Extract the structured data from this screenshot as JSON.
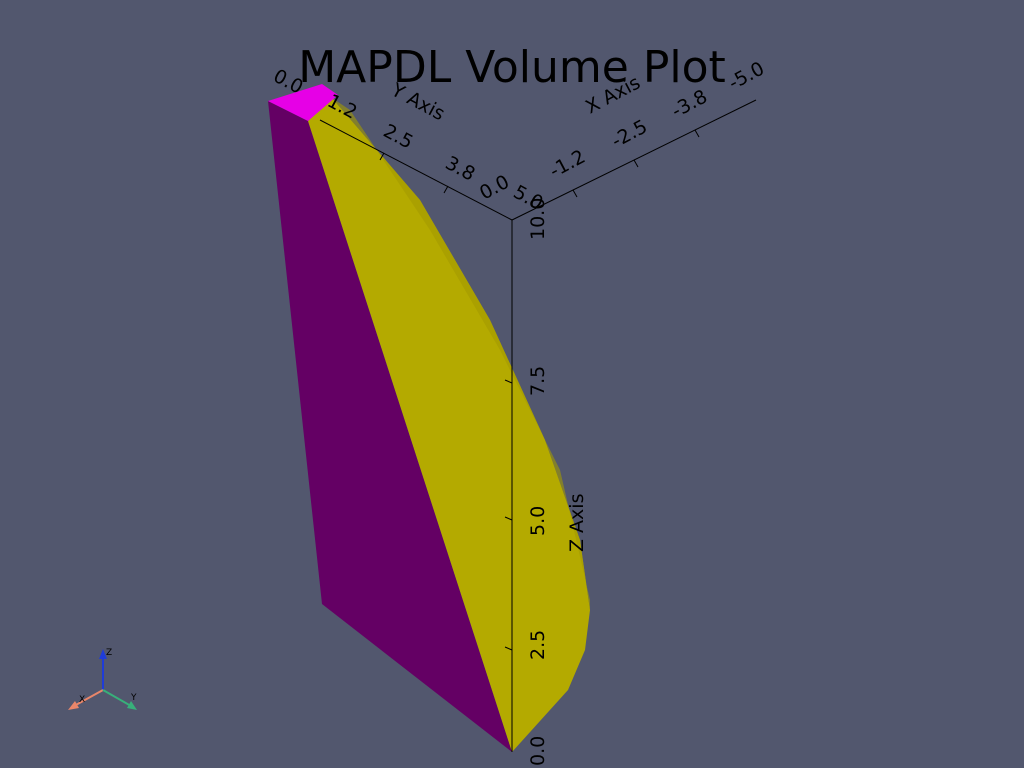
{
  "title": "MAPDL Volume Plot",
  "colors": {
    "background": "#52576e",
    "face_left": "#640064",
    "face_top": "#e600e6",
    "face_curved": "#b4aa00",
    "face_curved_shade": "#a49a00",
    "axis_line": "#000000",
    "triad_x": "#e8866a",
    "triad_y": "#38b07a",
    "triad_z": "#1f3cd8"
  },
  "axes": {
    "x": {
      "title": "X Axis",
      "ticks": [
        "-1.2",
        "-2.5",
        "-3.8",
        "-5.0"
      ]
    },
    "y": {
      "title": "Y Axis",
      "ticks": [
        "0.0",
        "1.2",
        "2.5",
        "3.8",
        "5.0"
      ]
    },
    "z": {
      "title": "Z Axis",
      "ticks": [
        "10.0",
        "7.5",
        "5.0",
        "2.5",
        "0.0"
      ]
    },
    "origin_labels": [
      "0.0",
      "5.0"
    ]
  },
  "orientation_widget": {
    "x_label": "X",
    "y_label": "Y",
    "z_label": "Z"
  }
}
